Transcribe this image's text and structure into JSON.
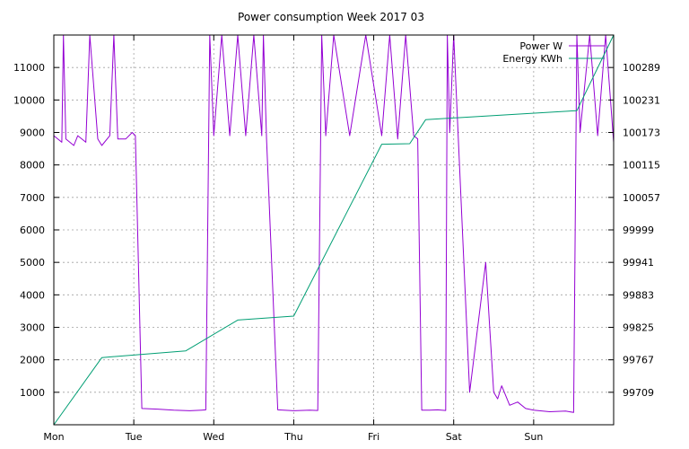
{
  "chart_data": {
    "type": "line",
    "title": "Power consumption Week 2017 03",
    "categories": [
      "Mon",
      "Tue",
      "Wed",
      "Thu",
      "Fri",
      "Sat",
      "Sun"
    ],
    "x_unit": "day",
    "xlim": [
      0,
      7
    ],
    "y_left": {
      "ticks": [
        1000,
        2000,
        3000,
        4000,
        5000,
        6000,
        7000,
        8000,
        9000,
        10000,
        11000
      ],
      "ylim": [
        0,
        12000
      ]
    },
    "y_right": {
      "ticks": [
        99709,
        99767,
        99825,
        99883,
        99941,
        99999,
        100057,
        100115,
        100173,
        100231,
        100289
      ],
      "ylim": [
        99651,
        100347
      ]
    },
    "grid": true,
    "legend_position": "top-right",
    "series": [
      {
        "name": "Power W",
        "axis": "left",
        "color": "#9400d3",
        "x": [
          0.0,
          0.1,
          0.12,
          0.15,
          0.25,
          0.3,
          0.4,
          0.45,
          0.55,
          0.6,
          0.7,
          0.75,
          0.8,
          0.9,
          0.98,
          1.02,
          1.1,
          1.3,
          1.5,
          1.7,
          1.85,
          1.9,
          1.95,
          2.0,
          2.1,
          2.2,
          2.3,
          2.4,
          2.5,
          2.6,
          2.62,
          2.66,
          2.8,
          3.0,
          3.2,
          3.3,
          3.35,
          3.4,
          3.5,
          3.7,
          3.9,
          4.1,
          4.2,
          4.3,
          4.4,
          4.5,
          4.55,
          4.6,
          4.7,
          4.8,
          4.9,
          4.92,
          4.95,
          5.0,
          5.2,
          5.4,
          5.5,
          5.55,
          5.6,
          5.7,
          5.8,
          5.9,
          6.0,
          6.2,
          6.4,
          6.5,
          6.54,
          6.58,
          6.7,
          6.8,
          6.9,
          7.0
        ],
        "y": [
          8900,
          8700,
          12000,
          8800,
          8600,
          8900,
          8700,
          12000,
          8800,
          8600,
          8900,
          12000,
          8800,
          8800,
          9000,
          8900,
          500,
          480,
          450,
          430,
          450,
          460,
          12000,
          8900,
          12000,
          8900,
          12000,
          8900,
          12000,
          8900,
          12000,
          8800,
          460,
          430,
          450,
          440,
          12000,
          8900,
          12000,
          8900,
          12000,
          8900,
          12000,
          8800,
          12000,
          8900,
          8800,
          450,
          450,
          460,
          440,
          12000,
          9000,
          12000,
          1000,
          5000,
          1000,
          800,
          1200,
          600,
          700,
          500,
          450,
          400,
          420,
          380,
          12000,
          9000,
          12000,
          8900,
          12000,
          8700
        ]
      },
      {
        "name": "Energy KWh",
        "axis": "right",
        "color": "#009e73",
        "x": [
          0.0,
          0.6,
          1.65,
          2.3,
          3.0,
          4.1,
          4.45,
          4.65,
          6.54,
          7.0
        ],
        "y": [
          99651,
          99771,
          99783,
          99838,
          99845,
          100152,
          100153,
          100196,
          100212,
          100347
        ]
      }
    ]
  }
}
